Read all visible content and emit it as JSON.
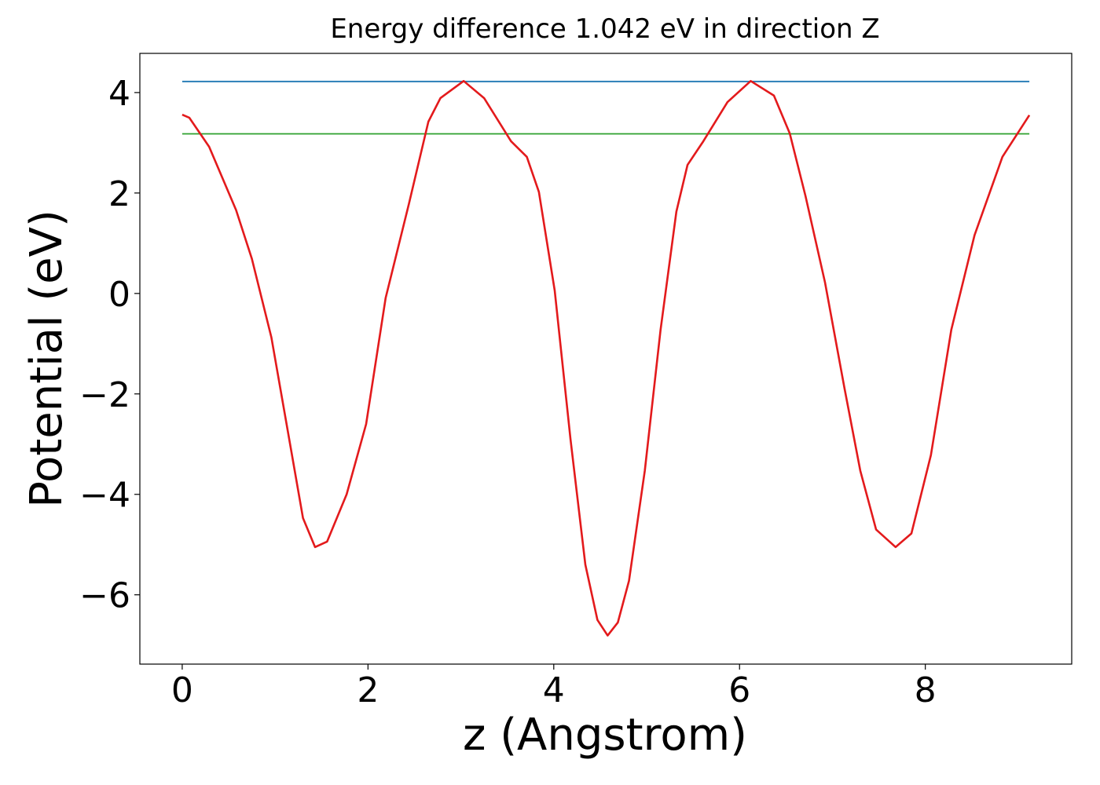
{
  "chart_data": {
    "type": "line",
    "title": "Energy difference 1.042 eV in direction Z",
    "xlabel": "z (Angstrom)",
    "ylabel": "Potential (eV)",
    "xlim": [
      -0.456,
      9.576
    ],
    "ylim": [
      -7.38,
      4.78
    ],
    "xticks": [
      0,
      2,
      4,
      6,
      8
    ],
    "yticks": [
      {
        "value": -6,
        "label": "−6"
      },
      {
        "value": -4,
        "label": "−4"
      },
      {
        "value": -2,
        "label": "−2"
      },
      0,
      2,
      4
    ],
    "series": [
      {
        "color": "#e31a1c",
        "x": [
          0,
          0.076,
          0.29,
          0.58,
          0.75,
          0.96,
          1.13,
          1.3,
          1.43,
          1.56,
          1.77,
          1.98,
          2.19,
          2.44,
          2.65,
          2.78,
          3.03,
          3.25,
          3.54,
          3.71,
          3.84,
          4.01,
          4.18,
          4.34,
          4.47,
          4.58,
          4.69,
          4.81,
          4.98,
          5.15,
          5.32,
          5.44,
          5.61,
          5.87,
          6.12,
          6.37,
          6.54,
          6.71,
          6.92,
          7.13,
          7.3,
          7.47,
          7.68,
          7.85,
          8.06,
          8.28,
          8.53,
          8.83,
          9.12
        ],
        "values": [
          3.56,
          3.5,
          2.92,
          1.66,
          0.69,
          -0.875,
          -2.67,
          -4.47,
          -5.05,
          -4.94,
          -4.0,
          -2.6,
          -0.09,
          1.78,
          3.42,
          3.89,
          4.23,
          3.89,
          3.03,
          2.72,
          2.02,
          0.06,
          -2.9,
          -5.4,
          -6.5,
          -6.81,
          -6.55,
          -5.72,
          -3.53,
          -0.72,
          1.63,
          2.56,
          3.03,
          3.81,
          4.23,
          3.94,
          3.19,
          1.94,
          0.22,
          -1.89,
          -3.53,
          -4.7,
          -5.05,
          -4.78,
          -3.22,
          -0.72,
          1.16,
          2.72,
          3.55
        ]
      },
      {
        "color": "#1f77b4",
        "x": [
          0,
          9.12
        ],
        "values": [
          4.22,
          4.22
        ]
      },
      {
        "color": "#2ca02c",
        "x": [
          0,
          9.12
        ],
        "values": [
          3.178,
          3.178
        ]
      }
    ]
  }
}
